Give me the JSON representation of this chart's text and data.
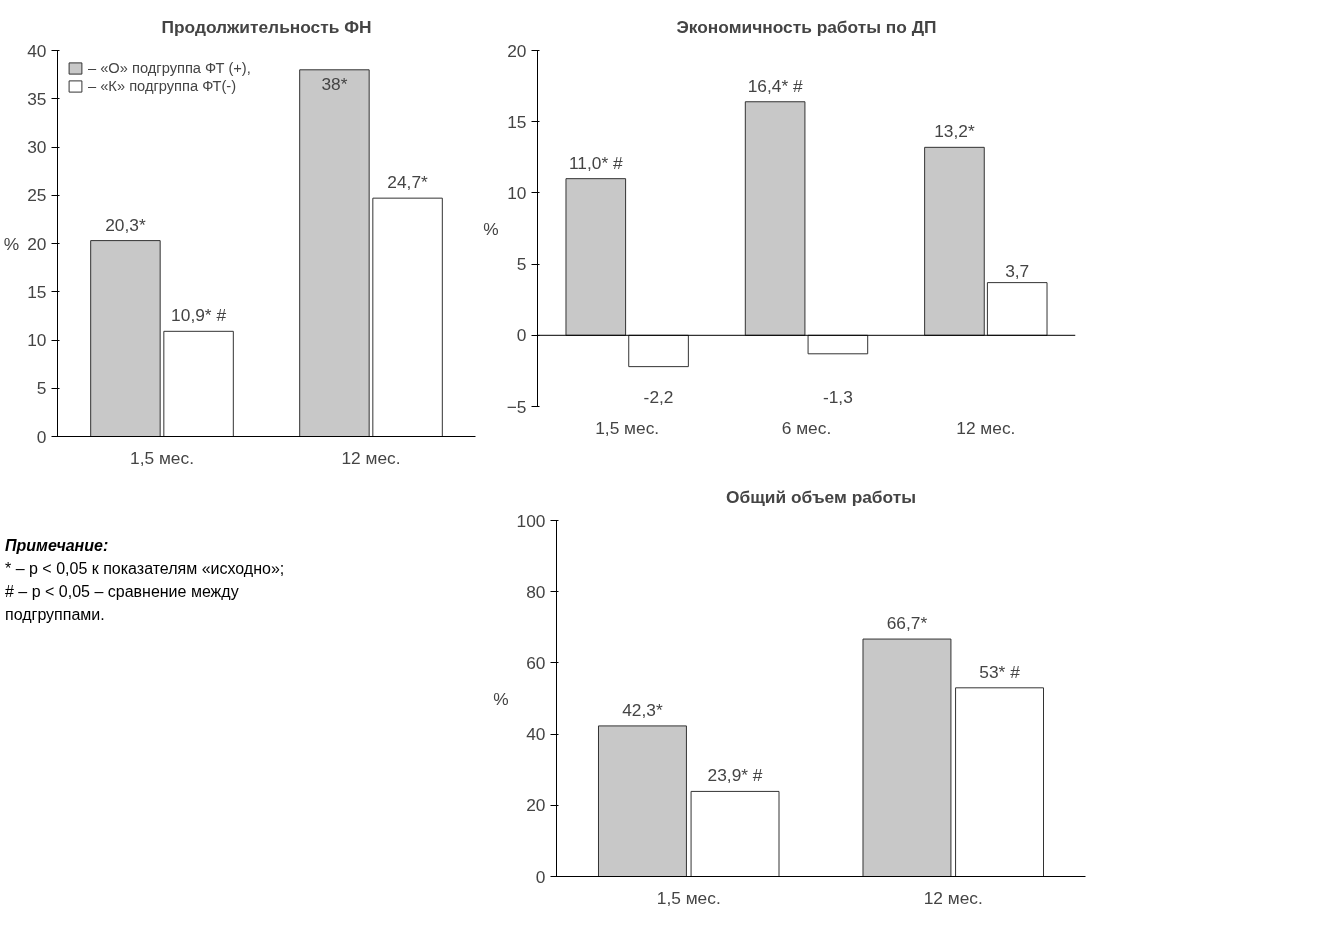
{
  "chart_data": [
    {
      "type": "bar",
      "title": "Продолжительность ФН",
      "ylabel": "%",
      "categories": [
        "1,5 мес.",
        "12 мес."
      ],
      "ylim": [
        0,
        40
      ],
      "yticks": [
        0,
        5,
        10,
        15,
        20,
        25,
        30,
        35,
        40
      ],
      "grid": false,
      "legend": "top left",
      "series": [
        {
          "name": "– «О» подгруппа ФТ (+),",
          "color": "#c8c8c8",
          "values": [
            20.3,
            38
          ],
          "value_labels": [
            "20,3*",
            "38*"
          ]
        },
        {
          "name": "– «К» подгруппа ФТ(-)",
          "color": "#ffffff",
          "values": [
            10.9,
            24.7
          ],
          "value_labels": [
            "10,9* #",
            "24,7*"
          ]
        }
      ],
      "annotations": [
        "Примечание:",
        "* – p < 0,05 к показателям «исходно»;",
        "# – p < 0,05 – сравнение между подгруппами."
      ]
    },
    {
      "type": "bar",
      "title": "Экономичность работы по ДП",
      "ylabel": "%",
      "categories": [
        "1,5 мес.",
        "6 мес.",
        "12 мес."
      ],
      "ylim": [
        -5,
        20
      ],
      "yticks": [
        -5,
        0,
        5,
        10,
        15,
        20
      ],
      "grid": false,
      "ref_lines": [
        {
          "axis": "y",
          "value": 0
        }
      ],
      "series": [
        {
          "color": "#c8c8c8",
          "values": [
            11.0,
            16.4,
            13.2
          ],
          "value_labels": [
            "11,0* #",
            "16,4* #",
            "13,2*"
          ]
        },
        {
          "color": "#ffffff",
          "values": [
            -2.2,
            -1.3,
            3.7
          ],
          "value_labels": [
            "-2,2",
            "-1,3",
            "3,7"
          ]
        }
      ]
    },
    {
      "type": "bar",
      "title": "Общий объем работы",
      "ylabel": "%",
      "categories": [
        "1,5 мес.",
        "12 мес."
      ],
      "ylim": [
        0,
        100
      ],
      "yticks": [
        0,
        20,
        40,
        60,
        80,
        100
      ],
      "grid": false,
      "series": [
        {
          "color": "#c8c8c8",
          "values": [
            42.3,
            66.7
          ],
          "value_labels": [
            "42,3*",
            "66,7*"
          ]
        },
        {
          "color": "#ffffff",
          "values": [
            23.9,
            53
          ],
          "value_labels": [
            "23,9* #",
            "53* #"
          ]
        }
      ]
    }
  ]
}
